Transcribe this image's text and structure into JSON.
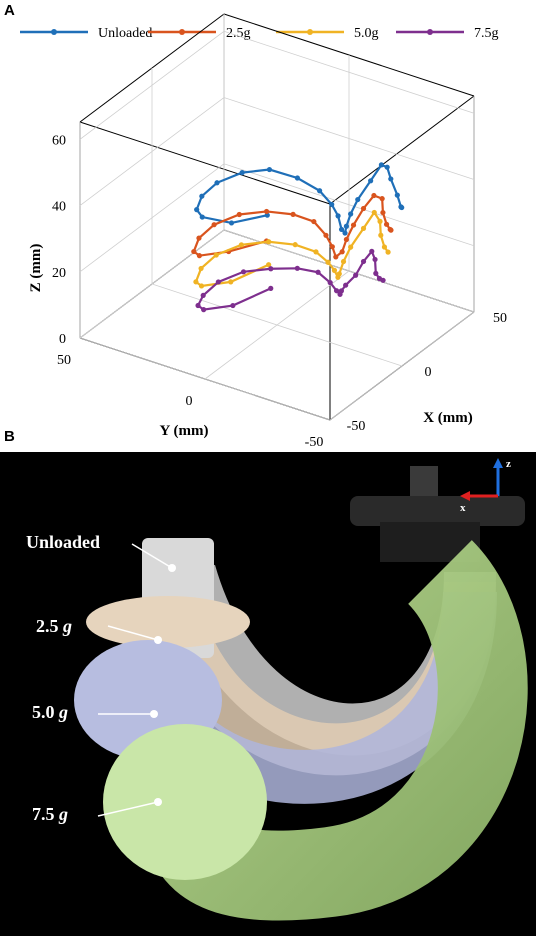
{
  "panels": {
    "a": "A",
    "b": "B"
  },
  "chart_data": {
    "type": "line",
    "projection": "3d",
    "legend_placement": "top",
    "grid": true,
    "xlabel": "X (mm)",
    "ylabel": "Y (mm)",
    "zlabel": "Z (mm)",
    "xlim": [
      -50,
      50
    ],
    "ylim": [
      -50,
      50
    ],
    "zlim": [
      0,
      60
    ],
    "x_ticks": [
      "-50",
      "0",
      "50"
    ],
    "y_ticks": [
      "-50",
      "0",
      "50"
    ],
    "z_ticks": [
      "0",
      "20",
      "40",
      "60"
    ],
    "series": [
      {
        "name": "Unloaded",
        "color": "#1f6fb8",
        "points": [
          [
            -38,
            -18,
            50
          ],
          [
            -42,
            -6,
            46
          ],
          [
            -38,
            8,
            43
          ],
          [
            -28,
            16,
            40
          ],
          [
            -14,
            22,
            38
          ],
          [
            0,
            24,
            37
          ],
          [
            14,
            22,
            36
          ],
          [
            26,
            18,
            34
          ],
          [
            35,
            12,
            30
          ],
          [
            40,
            6,
            26
          ],
          [
            38,
            0,
            24
          ],
          [
            32,
            -6,
            24
          ],
          [
            24,
            -12,
            24
          ],
          [
            16,
            -18,
            27
          ],
          [
            10,
            -22,
            32
          ],
          [
            6,
            -26,
            38
          ],
          [
            4,
            -30,
            44
          ],
          [
            6,
            -34,
            50
          ],
          [
            10,
            -36,
            54
          ],
          [
            14,
            -36,
            52
          ],
          [
            20,
            -34,
            46
          ],
          [
            28,
            -32,
            38
          ],
          [
            34,
            -30,
            32
          ],
          [
            38,
            -28,
            30
          ]
        ]
      },
      {
        "name": "2.5g",
        "color": "#d9541e",
        "points": [
          [
            -42,
            -20,
            44
          ],
          [
            -44,
            -6,
            38
          ],
          [
            -40,
            8,
            32
          ],
          [
            -30,
            16,
            28
          ],
          [
            -16,
            22,
            26
          ],
          [
            -2,
            24,
            25
          ],
          [
            12,
            22,
            24
          ],
          [
            24,
            18,
            22
          ],
          [
            32,
            12,
            20
          ],
          [
            36,
            6,
            18
          ],
          [
            34,
            0,
            16
          ],
          [
            28,
            -6,
            16
          ],
          [
            20,
            -12,
            17
          ],
          [
            14,
            -18,
            22
          ],
          [
            10,
            -22,
            28
          ],
          [
            8,
            -26,
            34
          ],
          [
            8,
            -30,
            40
          ],
          [
            10,
            -33,
            44
          ],
          [
            14,
            -34,
            42
          ],
          [
            18,
            -32,
            36
          ],
          [
            24,
            -30,
            30
          ],
          [
            30,
            -28,
            26
          ],
          [
            34,
            -26,
            24
          ]
        ]
      },
      {
        "name": "5.0g",
        "color": "#f0b324",
        "points": [
          [
            -44,
            -22,
            38
          ],
          [
            -46,
            -8,
            30
          ],
          [
            -42,
            6,
            24
          ],
          [
            -32,
            14,
            20
          ],
          [
            -18,
            20,
            18
          ],
          [
            -4,
            22,
            17
          ],
          [
            10,
            20,
            16
          ],
          [
            22,
            16,
            14
          ],
          [
            30,
            10,
            12
          ],
          [
            34,
            4,
            10
          ],
          [
            32,
            -2,
            9
          ],
          [
            26,
            -8,
            10
          ],
          [
            18,
            -14,
            12
          ],
          [
            12,
            -18,
            16
          ],
          [
            8,
            -22,
            22
          ],
          [
            6,
            -26,
            28
          ],
          [
            8,
            -30,
            34
          ],
          [
            12,
            -32,
            38
          ],
          [
            16,
            -32,
            34
          ],
          [
            20,
            -30,
            28
          ],
          [
            26,
            -28,
            22
          ],
          [
            32,
            -26,
            18
          ]
        ]
      },
      {
        "name": "7.5g",
        "color": "#7e2f8e",
        "points": [
          [
            -46,
            -24,
            32
          ],
          [
            -48,
            -10,
            24
          ],
          [
            -44,
            4,
            18
          ],
          [
            -34,
            12,
            14
          ],
          [
            -20,
            18,
            11
          ],
          [
            -6,
            20,
            10
          ],
          [
            8,
            18,
            9
          ],
          [
            20,
            14,
            7
          ],
          [
            28,
            8,
            6
          ],
          [
            32,
            2,
            5
          ],
          [
            30,
            -4,
            4
          ],
          [
            24,
            -10,
            5
          ],
          [
            16,
            -16,
            8
          ],
          [
            10,
            -20,
            12
          ],
          [
            6,
            -24,
            16
          ],
          [
            6,
            -28,
            20
          ],
          [
            8,
            -30,
            24
          ],
          [
            12,
            -31,
            26
          ],
          [
            16,
            -30,
            22
          ],
          [
            20,
            -28,
            16
          ],
          [
            26,
            -26,
            12
          ],
          [
            32,
            -24,
            9
          ]
        ]
      }
    ]
  },
  "photo": {
    "labels": [
      {
        "prefix": "Unloaded",
        "unit": ""
      },
      {
        "prefix": "2.5",
        "unit": "g"
      },
      {
        "prefix": "5.0",
        "unit": "g"
      },
      {
        "prefix": "7.5",
        "unit": "g"
      }
    ],
    "axes": {
      "z": "z",
      "x": "x"
    },
    "colors": {
      "unloaded": "#d9d9d9",
      "g25": "#e6d4bd",
      "g50": "#b7bde0",
      "g75": "#c9e6a8"
    }
  }
}
